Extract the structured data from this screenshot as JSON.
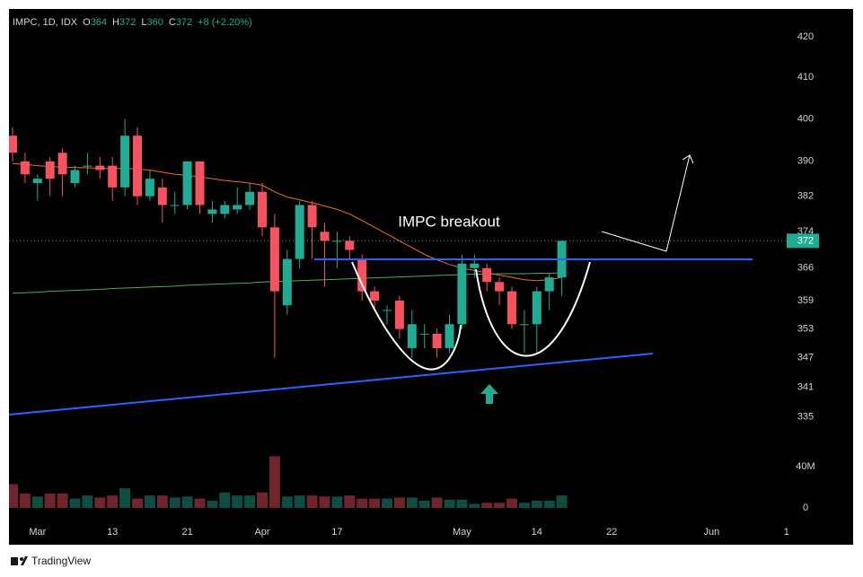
{
  "legend": {
    "symbol": "IMPC, 1D, IDX",
    "open": {
      "label": "O",
      "value": 364
    },
    "high": {
      "label": "H",
      "value": 372
    },
    "low": {
      "label": "L",
      "value": 360
    },
    "close": {
      "label": "C",
      "value": 372
    },
    "change": "+8 (+2.20%)"
  },
  "chart_data": {
    "type": "candlestick",
    "annotation": "IMPC breakout",
    "categories": [
      null,
      null,
      "Mar",
      null,
      null,
      null,
      null,
      null,
      "13",
      null,
      null,
      null,
      null,
      null,
      "21",
      null,
      null,
      null,
      null,
      null,
      "Apr",
      null,
      null,
      null,
      null,
      null,
      "17",
      null,
      null,
      null,
      null,
      null,
      null,
      null,
      null,
      null,
      "May",
      null,
      null,
      null,
      null,
      null,
      "14",
      null,
      null,
      null,
      null,
      null,
      "22",
      null,
      null,
      null,
      null,
      null,
      null,
      null,
      "Jun",
      null,
      null,
      null,
      null,
      null,
      "1"
    ],
    "open": [
      396,
      390,
      385,
      390,
      392,
      385,
      389,
      389,
      389,
      384,
      396,
      382,
      384,
      380,
      380,
      390,
      378,
      378,
      379,
      380,
      383,
      375,
      358,
      368,
      380,
      374,
      372,
      372,
      368,
      361,
      357,
      359,
      349,
      352,
      352,
      349,
      354,
      366,
      366,
      363,
      361,
      354,
      354,
      361,
      364,
      null,
      null,
      null,
      null,
      null,
      null,
      null,
      null,
      null,
      null,
      null,
      null,
      null,
      null,
      null,
      null,
      null,
      null
    ],
    "high": [
      398,
      392,
      387,
      391,
      393,
      389,
      392,
      391,
      391,
      400,
      398,
      388,
      386,
      383,
      390,
      390,
      381,
      381,
      384,
      385,
      385,
      378,
      370,
      381,
      381,
      376,
      374,
      373,
      369,
      362,
      358,
      360,
      357,
      354,
      353,
      356,
      369,
      369,
      367,
      364,
      362,
      357,
      362,
      365,
      372,
      null,
      null,
      null,
      null,
      null,
      null,
      null,
      null,
      null,
      null,
      null,
      null,
      null,
      null,
      null,
      null,
      null,
      null
    ],
    "low": [
      390,
      385,
      381,
      382,
      382,
      384,
      387,
      386,
      381,
      382,
      380,
      381,
      376,
      378,
      379,
      378,
      376,
      377,
      378,
      379,
      373,
      347,
      356,
      366,
      368,
      362,
      366,
      368,
      359,
      357,
      354,
      351,
      347,
      349,
      347,
      348,
      353,
      364,
      361,
      358,
      353,
      348,
      348,
      357,
      360,
      null,
      null,
      null,
      null,
      null,
      null,
      null,
      null,
      null,
      null,
      null,
      null,
      null,
      null,
      null,
      null,
      null,
      null
    ],
    "close": [
      392,
      387,
      386,
      386,
      387,
      388,
      389,
      388,
      384,
      396,
      382,
      386,
      380,
      380,
      390,
      380,
      379,
      380,
      380,
      383,
      375,
      361,
      368,
      380,
      375,
      372,
      372,
      370,
      361,
      359,
      357,
      353,
      354,
      352,
      349,
      354,
      367,
      367,
      363,
      361,
      354,
      354,
      361,
      364,
      372,
      null,
      null,
      null,
      null,
      null,
      null,
      null,
      null,
      null,
      null,
      null,
      null,
      null,
      null,
      null,
      null,
      null,
      null
    ],
    "volume": [
      23000000,
      14000000,
      11000000,
      14000000,
      14000000,
      9000000,
      12000000,
      10000000,
      12000000,
      19000000,
      9000000,
      12000000,
      12000000,
      10000000,
      11000000,
      9000000,
      7000000,
      15000000,
      12000000,
      12000000,
      15000000,
      50000000,
      11000000,
      12000000,
      12000000,
      11000000,
      11000000,
      12000000,
      9000000,
      9000000,
      9000000,
      10000000,
      10000000,
      7000000,
      10000000,
      8000000,
      8000000,
      4000000,
      5000000,
      5000000,
      9000000,
      5000000,
      7000000,
      7000000,
      12000000,
      null,
      null,
      null,
      null,
      null,
      null,
      null,
      null,
      null,
      null,
      null,
      null,
      null,
      null,
      null,
      null,
      null,
      null
    ],
    "up_color": "#22ab94",
    "down_color": "#f7525f",
    "moving_averages": [
      {
        "color": "#e8702a",
        "values": [
          389.5,
          389.3,
          389,
          388.8,
          388.7,
          388.6,
          388.5,
          388.4,
          388.3,
          388.4,
          388.2,
          388,
          387.5,
          387,
          386.8,
          386.4,
          386,
          385.6,
          385.3,
          385,
          384.5,
          383,
          381.8,
          381.2,
          380.5,
          379.8,
          379,
          378,
          376.5,
          375,
          373.5,
          372,
          370.5,
          369,
          367.8,
          366.8,
          366,
          365.5,
          365,
          364.5,
          364,
          363.5,
          363.3,
          363.5,
          364,
          null,
          null,
          null,
          null,
          null,
          null,
          null,
          null,
          null,
          null,
          null,
          null,
          null,
          null,
          null,
          null,
          null,
          null
        ]
      },
      {
        "color": "#4caf50",
        "values": [
          360.6,
          360.7,
          360.8,
          361,
          361.1,
          361.2,
          361.3,
          361.4,
          361.6,
          361.7,
          361.8,
          361.9,
          362,
          362.1,
          362.3,
          362.4,
          362.5,
          362.6,
          362.7,
          362.8,
          363,
          363.1,
          363.2,
          363.3,
          363.4,
          363.5,
          363.6,
          363.7,
          363.8,
          363.9,
          364,
          364.1,
          364.2,
          364.3,
          364.4,
          364.5,
          364.6,
          364.7,
          364.7,
          364.8,
          364.8,
          364.8,
          364.9,
          364.9,
          365,
          null,
          null,
          null,
          null,
          null,
          null,
          null,
          null,
          null,
          null,
          null,
          null,
          null,
          null,
          null,
          null,
          null,
          null
        ]
      }
    ],
    "ylim": [
      315,
      427
    ],
    "log_scale": true,
    "yticks": [
      335,
      341,
      347,
      353,
      359,
      366,
      374,
      382,
      390,
      400,
      410,
      420
    ],
    "volume_ylim": [
      0,
      66000000
    ],
    "volume_ticks": [
      0,
      {
        "value": 40000000,
        "label": "40M"
      }
    ],
    "last_price": 372,
    "grid": false
  },
  "footer": {
    "brand": "TradingView"
  }
}
